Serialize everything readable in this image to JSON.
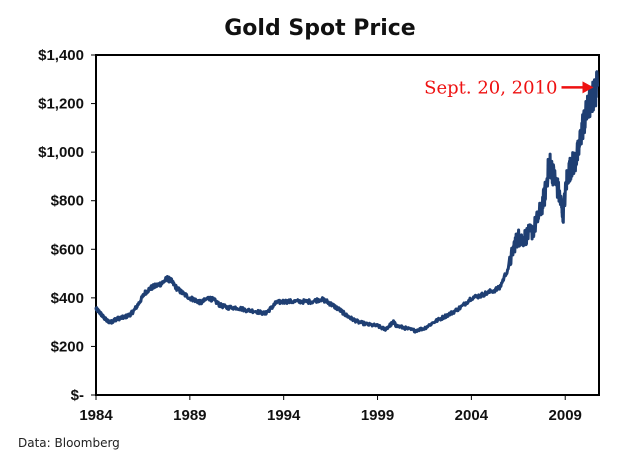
{
  "chart_data": {
    "type": "line",
    "title": "Gold Spot Price",
    "xlabel": "",
    "ylabel": "",
    "xlim": [
      1984,
      2010.8
    ],
    "ylim": [
      0,
      1400
    ],
    "y_ticks": [
      {
        "value": 1400,
        "label": "$1,400"
      },
      {
        "value": 1200,
        "label": "$1,200"
      },
      {
        "value": 1000,
        "label": "$1,000"
      },
      {
        "value": 800,
        "label": "$800"
      },
      {
        "value": 600,
        "label": "$600"
      },
      {
        "value": 400,
        "label": "$400"
      },
      {
        "value": 200,
        "label": "$200"
      },
      {
        "value": 0,
        "label": "$-"
      }
    ],
    "x_ticks": [
      {
        "value": 1984,
        "label": "1984"
      },
      {
        "value": 1989,
        "label": "1989"
      },
      {
        "value": 1994,
        "label": "1994"
      },
      {
        "value": 1999,
        "label": "1999"
      },
      {
        "value": 2004,
        "label": "2004"
      },
      {
        "value": 2009,
        "label": "2009"
      }
    ],
    "grid": false,
    "legend": "none",
    "series": [
      {
        "name": "Gold Spot Price",
        "color": "#1f3f73",
        "x": [
          1984.0,
          1984.2,
          1984.4,
          1984.6,
          1984.8,
          1985.0,
          1985.2,
          1985.5,
          1985.8,
          1986.0,
          1986.3,
          1986.6,
          1986.9,
          1987.2,
          1987.5,
          1987.8,
          1988.0,
          1988.3,
          1988.6,
          1989.0,
          1989.3,
          1989.6,
          1990.0,
          1990.3,
          1990.6,
          1991.0,
          1991.5,
          1992.0,
          1992.5,
          1993.0,
          1993.3,
          1993.6,
          1994.0,
          1994.5,
          1995.0,
          1995.5,
          1996.0,
          1996.3,
          1996.6,
          1997.0,
          1997.3,
          1997.6,
          1998.0,
          1998.5,
          1999.0,
          1999.4,
          1999.7,
          1999.85,
          2000.0,
          2000.5,
          2001.0,
          2001.5,
          2002.0,
          2002.5,
          2003.0,
          2003.5,
          2004.0,
          2004.5,
          2005.0,
          2005.5,
          2006.0,
          2006.3,
          2006.5,
          2006.7,
          2007.0,
          2007.3,
          2007.6,
          2007.9,
          2008.1,
          2008.2,
          2008.4,
          2008.6,
          2008.8,
          2008.9,
          2009.1,
          2009.3,
          2009.5,
          2009.7,
          2009.9,
          2010.1,
          2010.3,
          2010.5,
          2010.72
        ],
        "values": [
          355,
          340,
          320,
          305,
          300,
          310,
          315,
          320,
          330,
          345,
          380,
          420,
          440,
          450,
          460,
          480,
          470,
          440,
          420,
          400,
          390,
          380,
          400,
          390,
          370,
          360,
          360,
          350,
          345,
          335,
          355,
          380,
          385,
          385,
          385,
          385,
          395,
          385,
          370,
          350,
          330,
          315,
          300,
          290,
          285,
          270,
          290,
          300,
          285,
          275,
          265,
          275,
          300,
          320,
          340,
          365,
          400,
          410,
          425,
          440,
          530,
          620,
          650,
          640,
          660,
          680,
          740,
          820,
          930,
          950,
          900,
          850,
          780,
          750,
          900,
          940,
          960,
          1000,
          1100,
          1150,
          1200,
          1230,
          1275
        ]
      }
    ],
    "annotations": [
      {
        "text": "Sept. 20, 2010",
        "x": 2010.72,
        "y": 1275,
        "color": "#ee1111",
        "arrow": "right"
      }
    ]
  },
  "footer": {
    "source": "Data: Bloomberg"
  }
}
